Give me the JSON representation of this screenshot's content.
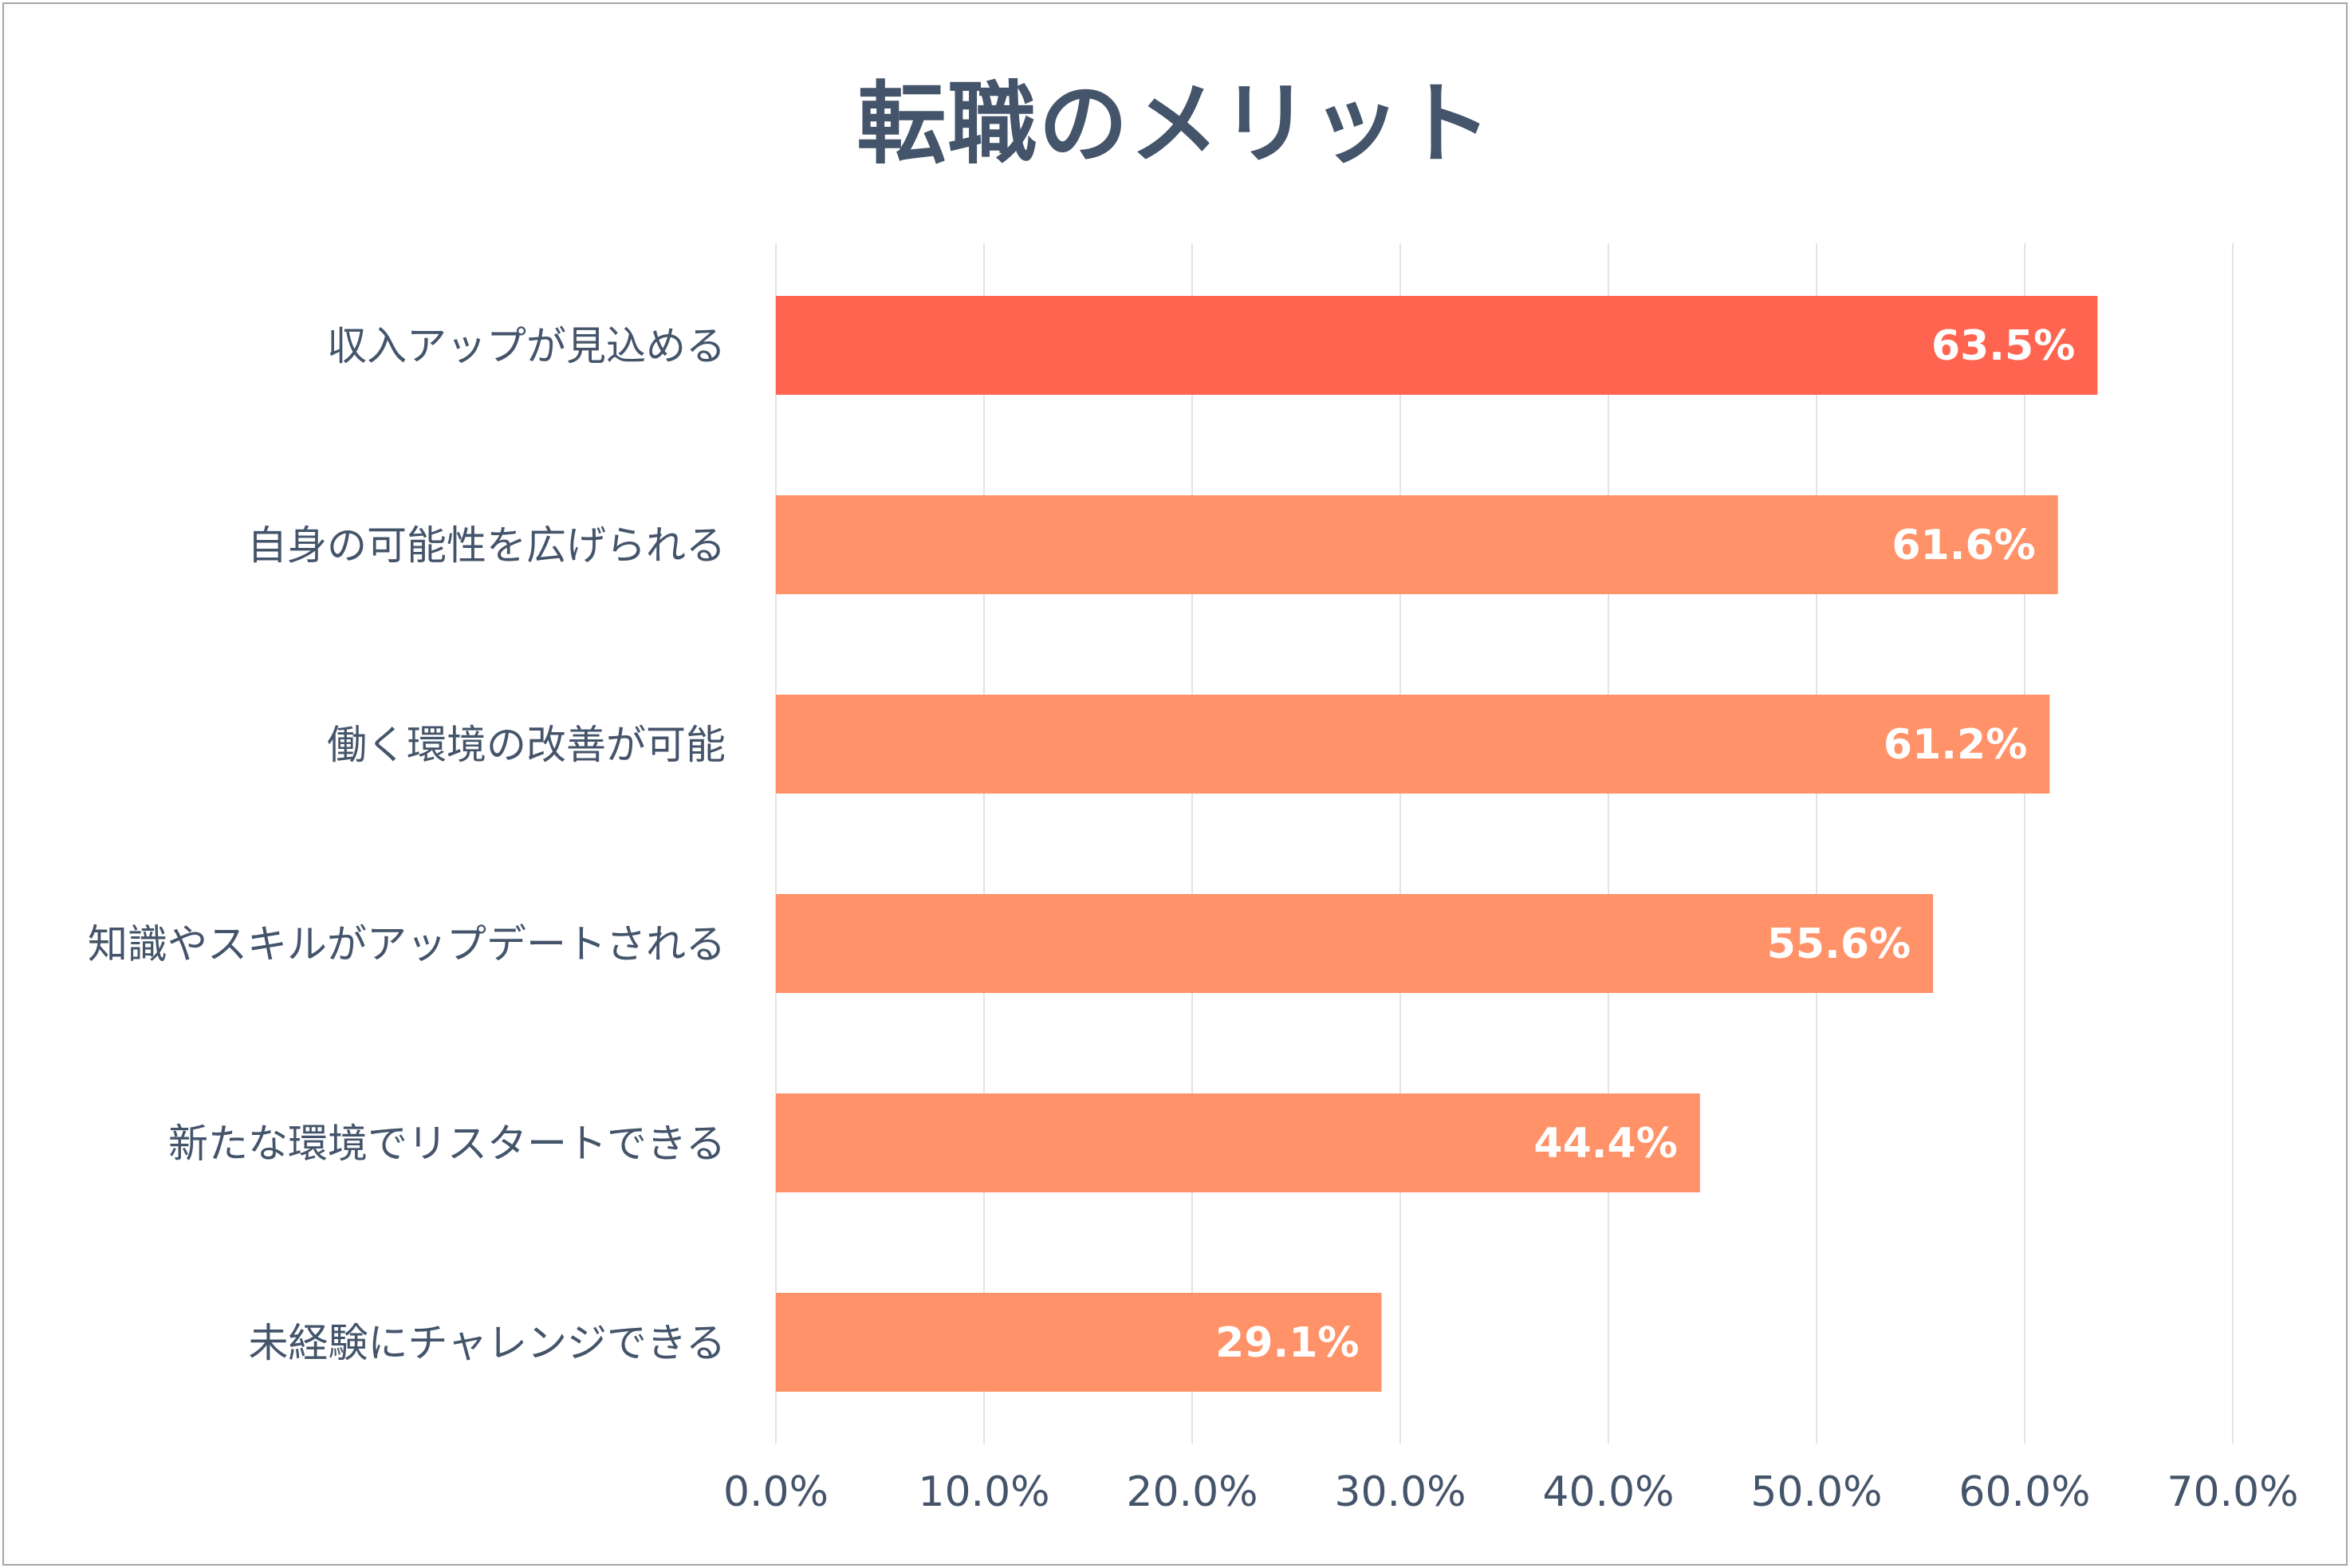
{
  "chart_data": {
    "type": "bar",
    "orientation": "horizontal",
    "title": "転職のメリット",
    "categories": [
      "収入アップが見込める",
      "自身の可能性を広げられる",
      "働く環境の改善が可能",
      "知識やスキルがアップデートされる",
      "新たな環境でリスタートできる",
      "未経験にチャレンジできる"
    ],
    "values": [
      63.5,
      61.6,
      61.2,
      55.6,
      44.4,
      29.1
    ],
    "data_labels": [
      "63.5%",
      "61.6%",
      "61.2%",
      "55.6%",
      "44.4%",
      "29.1%"
    ],
    "xlim": [
      0,
      70
    ],
    "x_ticks": [
      0,
      10,
      20,
      30,
      40,
      50,
      60,
      70
    ],
    "x_tick_labels": [
      "0.0%",
      "10.0%",
      "20.0%",
      "30.0%",
      "40.0%",
      "50.0%",
      "60.0%",
      "70.0%"
    ],
    "xlabel": "",
    "ylabel": "",
    "grid": true,
    "legend": "none",
    "colors": {
      "highlight": "#ff6450",
      "default": "#ff9268",
      "grid": "#e3e3e3",
      "text": "#44546a",
      "data_label": "#ffffff"
    },
    "highlight_index": 0
  }
}
